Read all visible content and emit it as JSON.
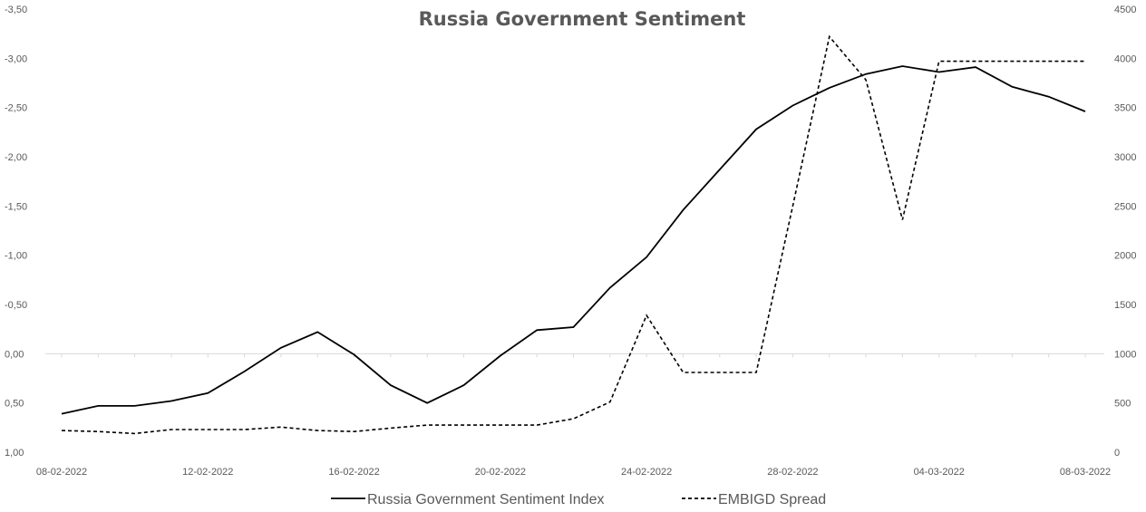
{
  "chart_data": {
    "type": "line",
    "title": "Russia Government Sentiment",
    "x_tick_labels": [
      "08-02-2022",
      "12-02-2022",
      "16-02-2022",
      "20-02-2022",
      "24-02-2022",
      "28-02-2022",
      "04-03-2022",
      "08-03-2022"
    ],
    "y_left": {
      "ticks": [
        1.0,
        0.5,
        0.0,
        -0.5,
        -1.0,
        -1.5,
        -2.0,
        -2.5,
        -3.0,
        -3.5
      ],
      "tick_labels": [
        "1,00",
        "0,50",
        "0,00",
        "-0,50",
        "-1,00",
        "-1,50",
        "-2,00",
        "-2,50",
        "-3,00",
        "-3,50"
      ],
      "range": [
        1.0,
        -3.5
      ],
      "inverted": true
    },
    "y_right": {
      "ticks": [
        0,
        500,
        1000,
        1500,
        2000,
        2500,
        3000,
        3500,
        4000,
        4500
      ],
      "tick_labels": [
        "0",
        "500",
        "1000",
        "1500",
        "2000",
        "2500",
        "3000",
        "3500",
        "4000",
        "4500"
      ],
      "range": [
        0,
        4500
      ]
    },
    "x": [
      "08-02-2022",
      "09-02-2022",
      "10-02-2022",
      "11-02-2022",
      "12-02-2022",
      "13-02-2022",
      "14-02-2022",
      "15-02-2022",
      "16-02-2022",
      "17-02-2022",
      "18-02-2022",
      "19-02-2022",
      "20-02-2022",
      "21-02-2022",
      "22-02-2022",
      "23-02-2022",
      "24-02-2022",
      "25-02-2022",
      "26-02-2022",
      "27-02-2022",
      "28-02-2022",
      "01-03-2022",
      "02-03-2022",
      "03-03-2022",
      "04-03-2022",
      "05-03-2022",
      "06-03-2022",
      "07-03-2022",
      "08-03-2022"
    ],
    "series": [
      {
        "name": "Russia Government Sentiment Index",
        "axis": "left",
        "style": "solid",
        "color": "#000000",
        "values": [
          0.61,
          0.53,
          0.53,
          0.48,
          0.4,
          0.18,
          -0.06,
          -0.22,
          0.01,
          0.32,
          0.5,
          0.32,
          0.02,
          -0.24,
          -0.27,
          -0.67,
          -0.98,
          -1.46,
          -1.87,
          -2.28,
          -2.52,
          -2.7,
          -2.84,
          -2.92,
          -2.86,
          -2.91,
          -2.71,
          -2.61,
          -2.46
        ]
      },
      {
        "name": "EMBIGD Spread",
        "axis": "right",
        "style": "dashed",
        "color": "#000000",
        "values": [
          220,
          210,
          190,
          230,
          230,
          230,
          255,
          220,
          210,
          245,
          275,
          275,
          275,
          275,
          340,
          510,
          1390,
          810,
          810,
          810,
          2500,
          4220,
          3780,
          2360,
          3970,
          3970,
          3970,
          3970,
          3970
        ]
      }
    ],
    "legend_position": "bottom",
    "grid": "horizontal zero line only"
  }
}
